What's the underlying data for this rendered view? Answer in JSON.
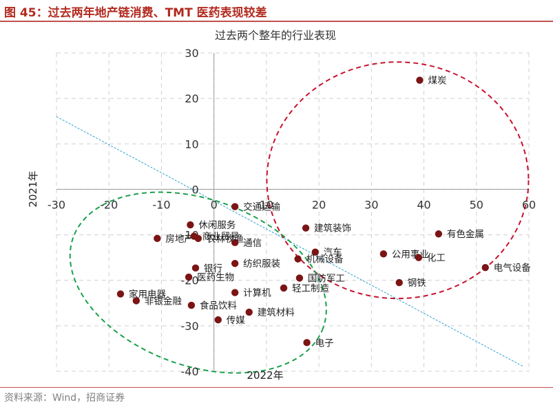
{
  "header": {
    "title": "图 45：过去两年地产链消费、TMT 医药表现较差"
  },
  "footer": {
    "source": "资料来源：Wind，招商证券"
  },
  "colors": {
    "accent": "#b22a1f",
    "point": "#7b1414",
    "red_ellipse": "#c8102e",
    "green_ellipse": "#1aa04a",
    "trend_line": "#2b9fd1",
    "grid": "#d0d0d0"
  },
  "chart_data": {
    "type": "scatter",
    "title": "过去两个整年的行业表现",
    "xlabel": "2022年",
    "ylabel": "2021年",
    "xlim": [
      -30,
      60
    ],
    "ylim": [
      -40,
      30
    ],
    "xticks": [
      -30,
      -20,
      -10,
      0,
      10,
      20,
      30,
      40,
      50,
      60
    ],
    "yticks": [
      -40,
      -30,
      -20,
      -10,
      0,
      10,
      20,
      30
    ],
    "grid": true,
    "points": [
      {
        "label": "煤炭",
        "x": 39.2,
        "y": 24.0
      },
      {
        "label": "交通运输",
        "x": 4.0,
        "y": -3.8
      },
      {
        "label": "建筑装饰",
        "x": 17.5,
        "y": -8.5
      },
      {
        "label": "有色金属",
        "x": 42.8,
        "y": -9.8
      },
      {
        "label": "休闲服务",
        "x": -4.5,
        "y": -7.8
      },
      {
        "label": "房地产",
        "x": -10.8,
        "y": -10.8
      },
      {
        "label": "农林牧渔",
        "x": -3.0,
        "y": -10.8
      },
      {
        "label": "通信",
        "x": 4.0,
        "y": -11.7
      },
      {
        "label": "商业贸易",
        "x": -3.8,
        "y": -10.3
      },
      {
        "label": "汽车",
        "x": 19.3,
        "y": -13.8
      },
      {
        "label": "机械设备",
        "x": 16.0,
        "y": -15.3
      },
      {
        "label": "公用事业",
        "x": 32.3,
        "y": -14.2
      },
      {
        "label": "化工",
        "x": 39.0,
        "y": -15.0
      },
      {
        "label": "电气设备",
        "x": 51.7,
        "y": -17.2
      },
      {
        "label": "银行",
        "x": -3.5,
        "y": -17.3
      },
      {
        "label": "纺织服装",
        "x": 4.0,
        "y": -16.3
      },
      {
        "label": "医药生物",
        "x": -4.8,
        "y": -19.3
      },
      {
        "label": "国防军工",
        "x": 16.3,
        "y": -19.5
      },
      {
        "label": "钢铁",
        "x": 35.3,
        "y": -20.5
      },
      {
        "label": "轻工制造",
        "x": 13.3,
        "y": -21.7
      },
      {
        "label": "计算机",
        "x": 4.0,
        "y": -22.7
      },
      {
        "label": "家用电器",
        "x": -17.8,
        "y": -23.0
      },
      {
        "label": "非银金融",
        "x": -14.8,
        "y": -24.5
      },
      {
        "label": "食品饮料",
        "x": -4.3,
        "y": -25.5
      },
      {
        "label": "建筑材料",
        "x": 6.7,
        "y": -27.0
      },
      {
        "label": "传媒",
        "x": 0.8,
        "y": -28.7
      },
      {
        "label": "电子",
        "x": 17.7,
        "y": -33.7
      }
    ]
  }
}
